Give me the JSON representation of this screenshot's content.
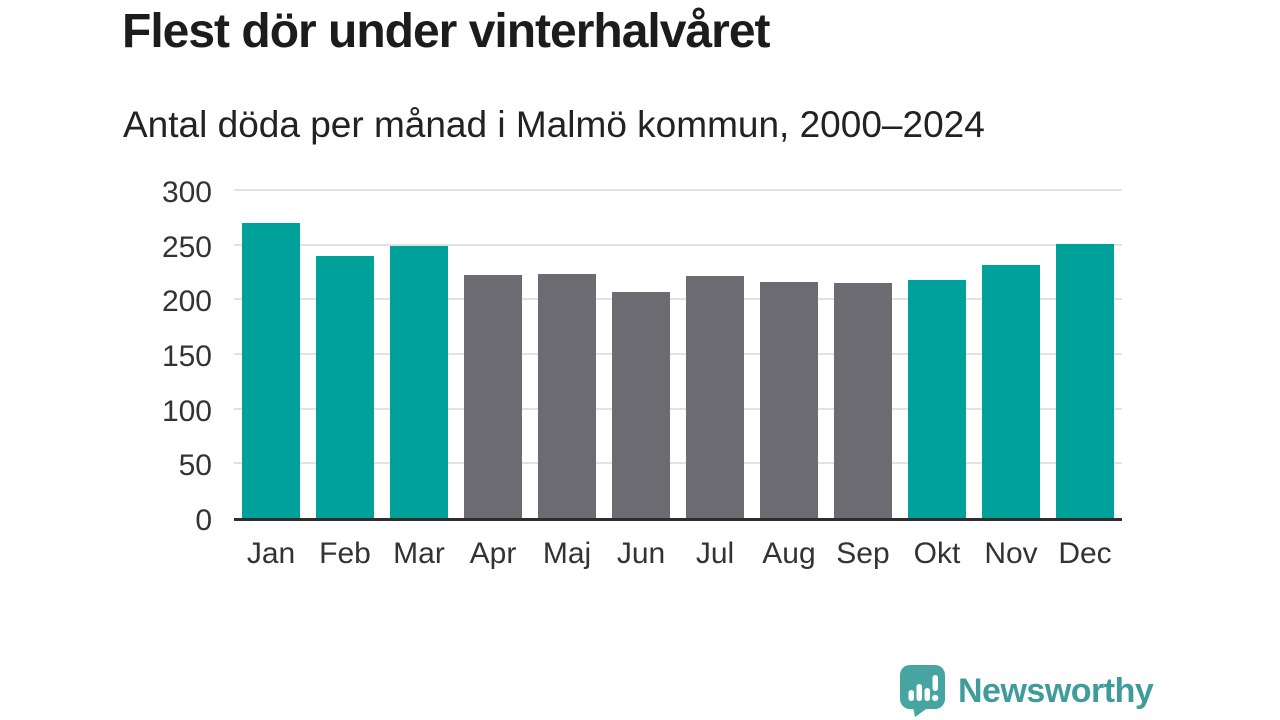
{
  "page": {
    "title": "Flest dör under vinterhalvåret",
    "subtitle": "Antal döda per månad i Malmö kommun, 2000–2024"
  },
  "chart_data": {
    "type": "bar",
    "title": "Flest dör under vinterhalvåret",
    "subtitle": "Antal döda per månad i Malmö kommun, 2000–2024",
    "categories": [
      "Jan",
      "Feb",
      "Mar",
      "Apr",
      "Maj",
      "Jun",
      "Jul",
      "Aug",
      "Sep",
      "Okt",
      "Nov",
      "Dec"
    ],
    "values": [
      270,
      240,
      249,
      222,
      223,
      207,
      221,
      216,
      215,
      218,
      231,
      251
    ],
    "bar_color_roles": [
      "winter",
      "winter",
      "winter",
      "summer",
      "summer",
      "summer",
      "summer",
      "summer",
      "summer",
      "winter",
      "winter",
      "winter"
    ],
    "palette": {
      "winter": "#00A19A",
      "summer": "#6B6B71"
    },
    "yticks": [
      0,
      50,
      100,
      150,
      200,
      250,
      300
    ],
    "ylim": [
      0,
      300
    ],
    "grid": true,
    "grid_color": "#e2e2e2",
    "axis_color": "#2e2e2e",
    "tick_label_color": "#333333",
    "xlabel": "",
    "ylabel": ""
  },
  "branding": {
    "logo_text": "Newsworthy",
    "logo_text_color": "#3F9C9B",
    "logo_icon_color": "#47A5A1",
    "logo_icon_name": "newsworthy-bar-chart-bubble"
  }
}
